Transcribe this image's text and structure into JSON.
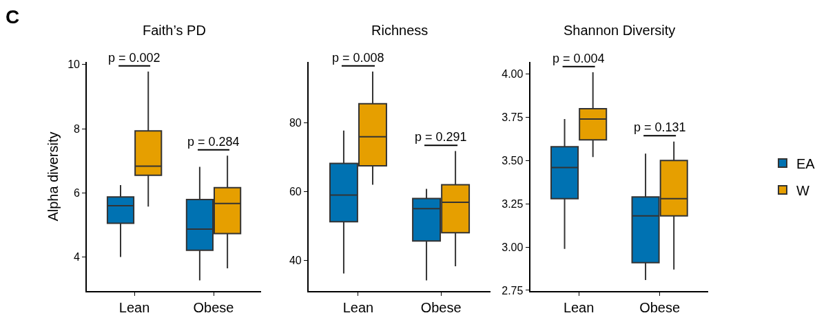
{
  "chart_data": [
    {
      "type": "box",
      "title": "Faith’s PD",
      "ylabel": "Alpha diversity",
      "categories": [
        "Lean",
        "Obese"
      ],
      "ylim": [
        2.94,
        10.08
      ],
      "yticks": [
        4,
        6,
        8,
        10
      ],
      "legend": "right",
      "annotations": [
        "C",
        "p = 0.002",
        "p = 0.284"
      ],
      "series": [
        {
          "name": "EA",
          "color": "#0072b2",
          "boxes": [
            {
              "low": 4.0,
              "q1": 5.05,
              "median": 5.6,
              "q3": 5.87,
              "high": 6.24
            },
            {
              "low": 3.27,
              "q1": 4.21,
              "median": 4.87,
              "q3": 5.79,
              "high": 6.81
            }
          ]
        },
        {
          "name": "W",
          "color": "#e69f00",
          "boxes": [
            {
              "low": 5.57,
              "q1": 6.55,
              "median": 6.83,
              "q3": 7.93,
              "high": 9.78
            },
            {
              "low": 3.65,
              "q1": 4.73,
              "median": 5.67,
              "q3": 6.16,
              "high": 7.16
            }
          ]
        }
      ]
    },
    {
      "type": "box",
      "title": "Richness",
      "categories": [
        "Lean",
        "Obese"
      ],
      "ylim": [
        31,
        97.8
      ],
      "yticks": [
        40,
        60,
        80
      ],
      "legend": "right",
      "annotations": [
        "p = 0.008",
        "p = 0.291"
      ],
      "series": [
        {
          "color": "#0072b2",
          "boxes": [
            {
              "low": 36.1,
              "q1": 51.2,
              "median": 59.0,
              "q3": 68.2,
              "high": 77.8
            },
            {
              "low": 34.1,
              "q1": 45.6,
              "median": 55.0,
              "q3": 58.0,
              "high": 60.8
            }
          ]
        },
        {
          "color": "#e69f00",
          "boxes": [
            {
              "low": 62.0,
              "q1": 67.5,
              "median": 76.0,
              "q3": 85.6,
              "high": 95.0
            },
            {
              "low": 38.2,
              "q1": 48.0,
              "median": 56.9,
              "q3": 62.0,
              "high": 71.8
            }
          ]
        }
      ]
    },
    {
      "type": "box",
      "title": "Shannon Diversity",
      "categories": [
        "Lean",
        "Obese"
      ],
      "ylim": [
        2.746,
        4.07
      ],
      "yticks": [
        {
          "value": 2.75,
          "label": "2.75"
        },
        {
          "value": 3,
          "label": "3.00"
        },
        {
          "value": 3.25,
          "label": "3.25"
        },
        {
          "value": 3.5,
          "label": "3.50"
        },
        {
          "value": 3.75,
          "label": "3.75"
        },
        {
          "value": 4,
          "label": "4.00"
        }
      ],
      "legend": "right",
      "annotations": [
        "p = 0.004",
        "p = 0.131"
      ],
      "series": [
        {
          "color": "#0072b2",
          "boxes": [
            {
              "low": 2.99,
              "q1": 3.28,
              "median": 3.46,
              "q3": 3.58,
              "high": 3.74
            },
            {
              "low": 2.81,
              "q1": 2.91,
              "median": 3.18,
              "q3": 3.29,
              "high": 3.54
            }
          ]
        },
        {
          "color": "#e69f00",
          "boxes": [
            {
              "low": 3.52,
              "q1": 3.62,
              "median": 3.74,
              "q3": 3.8,
              "high": 4.01
            },
            {
              "low": 2.87,
              "q1": 3.18,
              "median": 3.28,
              "q3": 3.5,
              "high": 3.61
            }
          ]
        }
      ]
    }
  ]
}
